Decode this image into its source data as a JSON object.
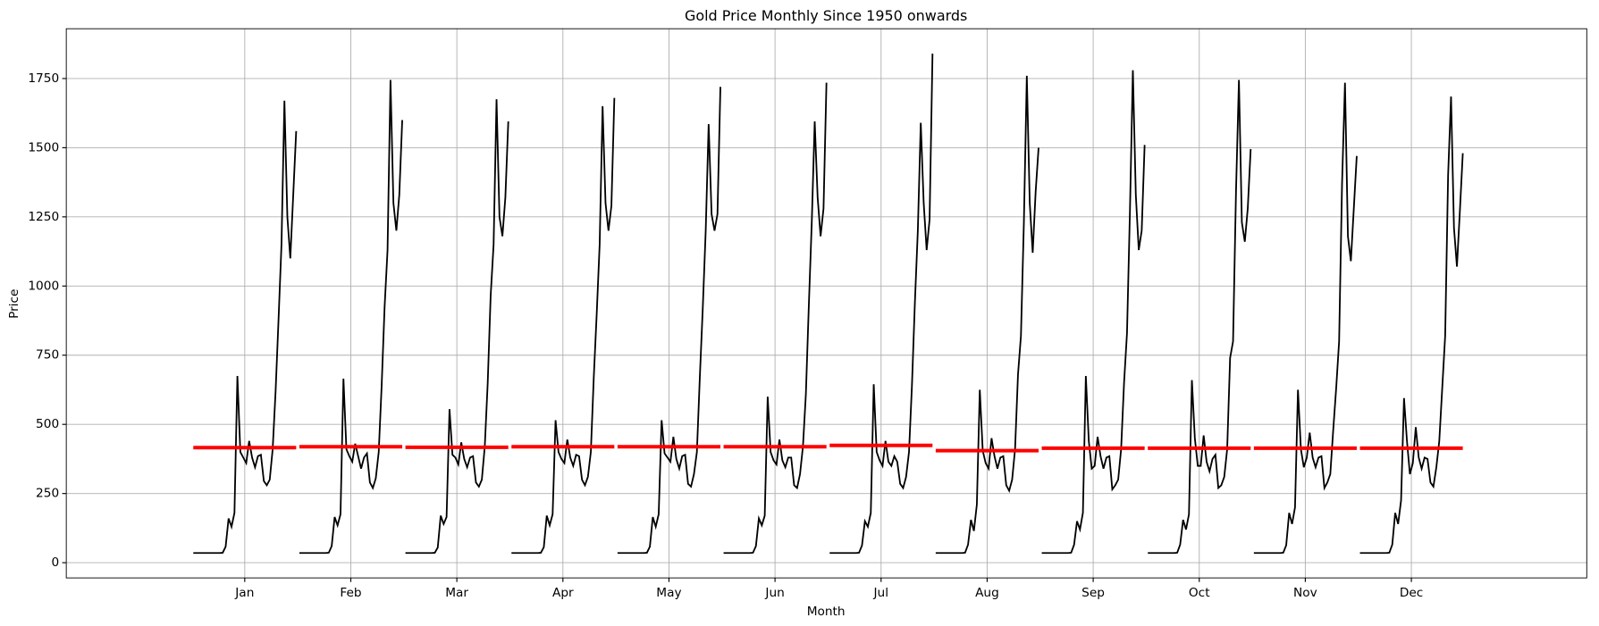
{
  "chart_data": {
    "type": "month_plot",
    "title": "Gold Price Monthly Since 1950 onwards",
    "x_label": "Month",
    "y_label": "Price",
    "categories": [
      "Jan",
      "Feb",
      "Mar",
      "Apr",
      "May",
      "Jun",
      "Jul",
      "Aug",
      "Sep",
      "Oct",
      "Nov",
      "Dec"
    ],
    "values": [
      [
        35,
        35,
        35,
        35,
        35,
        35,
        35,
        35,
        35,
        35,
        36,
        58,
        160,
        130,
        180,
        675,
        400,
        380,
        360,
        440,
        380,
        345,
        385,
        390,
        295,
        280,
        300,
        410,
        620,
        880,
        1150,
        1670,
        1250,
        1100,
        1330,
        1560
      ],
      [
        35,
        35,
        35,
        35,
        35,
        35,
        35,
        35,
        35,
        35,
        36,
        60,
        165,
        135,
        175,
        665,
        410,
        385,
        365,
        430,
        385,
        340,
        380,
        395,
        290,
        270,
        305,
        400,
        640,
        925,
        1130,
        1745,
        1300,
        1200,
        1330,
        1600
      ],
      [
        35,
        35,
        35,
        35,
        35,
        35,
        35,
        35,
        35,
        35,
        36,
        55,
        170,
        140,
        165,
        555,
        390,
        380,
        355,
        435,
        375,
        345,
        380,
        385,
        290,
        275,
        300,
        420,
        650,
        965,
        1150,
        1675,
        1250,
        1180,
        1320,
        1595
      ],
      [
        35,
        35,
        35,
        35,
        35,
        35,
        35,
        35,
        35,
        35,
        36,
        56,
        170,
        135,
        175,
        515,
        400,
        375,
        360,
        445,
        380,
        350,
        390,
        385,
        300,
        280,
        310,
        400,
        670,
        900,
        1150,
        1650,
        1300,
        1200,
        1290,
        1680
      ],
      [
        35,
        35,
        35,
        35,
        35,
        35,
        35,
        35,
        35,
        35,
        36,
        58,
        165,
        130,
        175,
        515,
        395,
        380,
        365,
        455,
        375,
        340,
        385,
        390,
        285,
        275,
        320,
        400,
        670,
        920,
        1200,
        1585,
        1260,
        1200,
        1260,
        1720
      ],
      [
        35,
        35,
        35,
        35,
        35,
        35,
        35,
        35,
        35,
        35,
        36,
        60,
        160,
        135,
        170,
        600,
        400,
        370,
        355,
        445,
        370,
        345,
        380,
        380,
        280,
        270,
        320,
        420,
        610,
        930,
        1230,
        1595,
        1320,
        1180,
        1280,
        1735
      ],
      [
        35,
        35,
        35,
        35,
        35,
        35,
        35,
        35,
        35,
        35,
        36,
        62,
        150,
        130,
        180,
        645,
        400,
        370,
        350,
        440,
        365,
        350,
        385,
        365,
        285,
        270,
        310,
        400,
        640,
        940,
        1200,
        1590,
        1300,
        1130,
        1240,
        1840
      ],
      [
        35,
        35,
        35,
        35,
        35,
        35,
        35,
        35,
        35,
        35,
        36,
        65,
        155,
        115,
        210,
        625,
        405,
        360,
        340,
        450,
        385,
        340,
        380,
        385,
        280,
        260,
        300,
        410,
        680,
        820,
        1230,
        1760,
        1300,
        1120,
        1340,
        1500
      ],
      [
        35,
        35,
        35,
        35,
        35,
        35,
        35,
        35,
        35,
        35,
        36,
        65,
        150,
        120,
        180,
        675,
        440,
        340,
        350,
        455,
        385,
        340,
        380,
        385,
        265,
        280,
        300,
        410,
        650,
        830,
        1270,
        1780,
        1330,
        1130,
        1200,
        1510
      ],
      [
        35,
        35,
        35,
        35,
        35,
        35,
        35,
        35,
        35,
        35,
        36,
        65,
        155,
        120,
        175,
        660,
        450,
        350,
        350,
        460,
        365,
        330,
        375,
        390,
        270,
        280,
        310,
        410,
        740,
        800,
        1340,
        1745,
        1230,
        1160,
        1280,
        1495
      ],
      [
        35,
        35,
        35,
        35,
        35,
        35,
        35,
        35,
        35,
        35,
        36,
        63,
        180,
        140,
        200,
        625,
        410,
        345,
        380,
        470,
        380,
        345,
        380,
        385,
        270,
        290,
        320,
        480,
        630,
        800,
        1370,
        1735,
        1180,
        1090,
        1280,
        1470
      ],
      [
        35,
        35,
        35,
        35,
        35,
        35,
        35,
        35,
        35,
        35,
        36,
        65,
        180,
        140,
        225,
        595,
        440,
        320,
        360,
        490,
        380,
        340,
        380,
        375,
        290,
        275,
        345,
        440,
        630,
        820,
        1400,
        1685,
        1210,
        1070,
        1270,
        1480
      ]
    ],
    "means": [
      416,
      419,
      417,
      419,
      419,
      419,
      424,
      405,
      414,
      414,
      414,
      414
    ],
    "color": "#000000",
    "mean_color": "#ff0000",
    "ylim": [
      -55,
      1930
    ],
    "yticks": [
      0,
      250,
      500,
      750,
      1000,
      1250,
      1500,
      1750
    ],
    "grid": true
  }
}
